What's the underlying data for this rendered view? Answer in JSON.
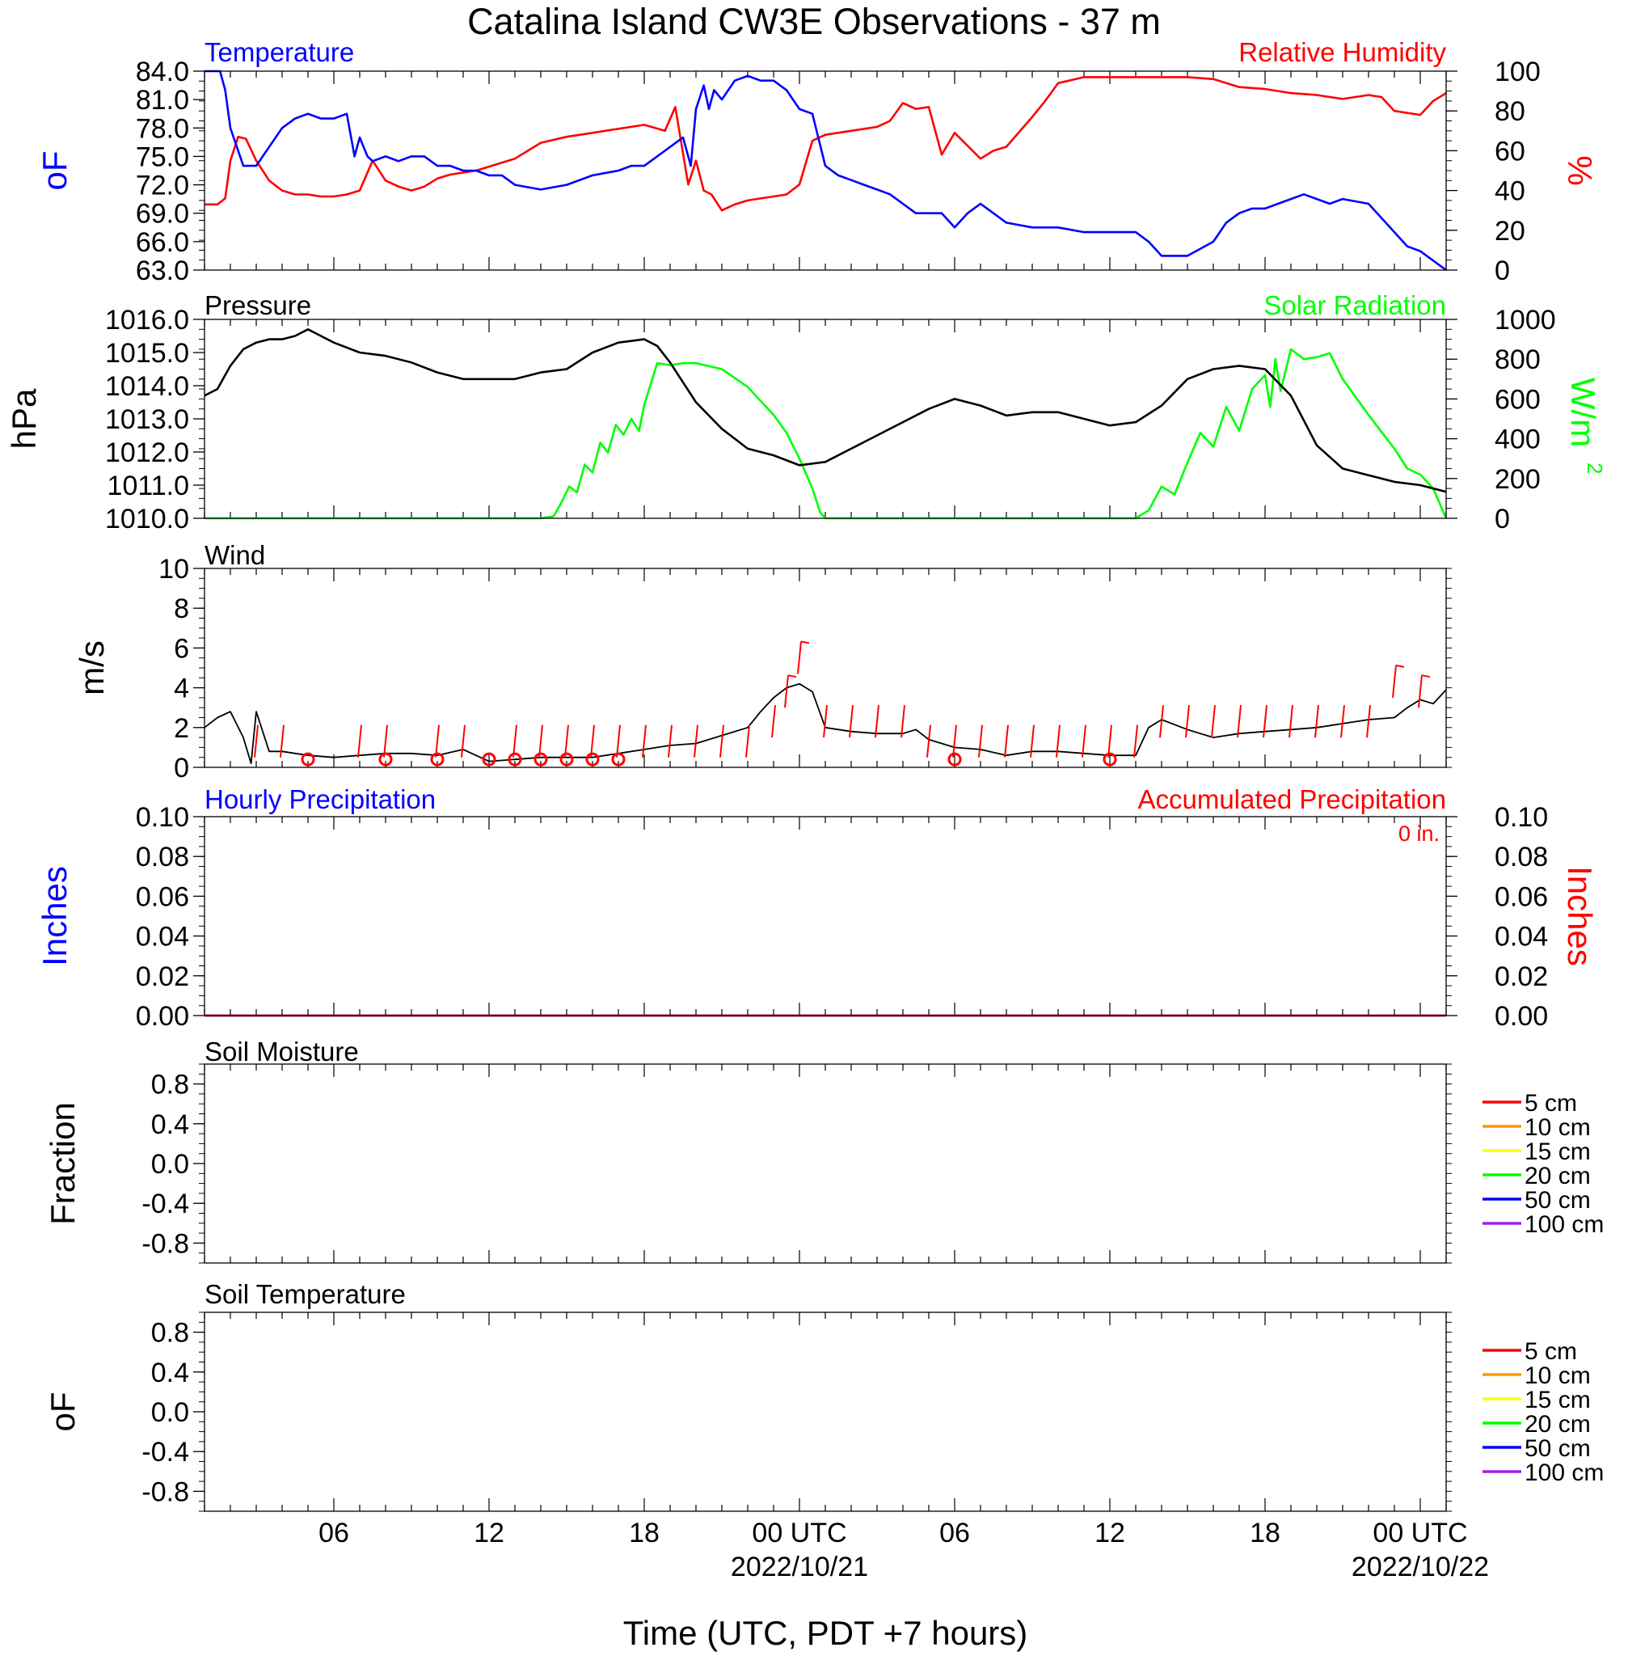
{
  "title": "Catalina Island CW3E Observations - 37 m",
  "x_axis": {
    "title": "Time (UTC, PDT +7 hours)",
    "tick_labels": [
      "06",
      "12",
      "18",
      "00 UTC",
      "06",
      "12",
      "18",
      "00 UTC"
    ],
    "date_labels": [
      "2022/10/21",
      "2022/10/22"
    ]
  },
  "colors": {
    "temperature": "#0000ff",
    "humidity": "#ff0000",
    "pressure": "#000000",
    "solar": "#00ff00",
    "wind": "#000000",
    "barb": "#ff0000",
    "hourly_precip": "#0000ff",
    "accum_precip": "#ff0000"
  },
  "panels": {
    "temp_rh": {
      "left_label": "Temperature",
      "right_label": "Relative Humidity",
      "left_unit": "oF",
      "right_unit": "%",
      "left_ticks": [
        "84.0",
        "81.0",
        "78.0",
        "75.0",
        "72.0",
        "69.0",
        "66.0",
        "63.0"
      ],
      "right_ticks": [
        "100",
        "80",
        "60",
        "40",
        "20",
        "0"
      ]
    },
    "pressure_solar": {
      "left_label": "Pressure",
      "right_label": "Solar Radiation",
      "left_unit": "hPa",
      "right_unit": "W/m",
      "right_unit_sup": "2",
      "left_ticks": [
        "1016.0",
        "1015.0",
        "1014.0",
        "1013.0",
        "1012.0",
        "1011.0",
        "1010.0"
      ],
      "right_ticks": [
        "1000",
        "800",
        "600",
        "400",
        "200",
        "0"
      ]
    },
    "wind": {
      "left_label": "Wind",
      "left_unit": "m/s",
      "left_ticks": [
        "10",
        "8",
        "6",
        "4",
        "2",
        "0"
      ]
    },
    "precip": {
      "left_label": "Hourly Precipitation",
      "right_label": "Accumulated Precipitation",
      "accum_total": "0 in.",
      "left_unit": "Inches",
      "right_unit": "Inches",
      "left_ticks": [
        "0.10",
        "0.08",
        "0.06",
        "0.04",
        "0.02",
        "0.00"
      ],
      "right_ticks": [
        "0.10",
        "0.08",
        "0.06",
        "0.04",
        "0.02",
        "0.00"
      ]
    },
    "soil_moisture": {
      "left_label": "Soil Moisture",
      "left_unit": "Fraction",
      "left_ticks": [
        "0.8",
        "0.4",
        "0.0",
        "-0.4",
        "-0.8"
      ],
      "legend": [
        {
          "label": "5 cm",
          "color": "#ff0000"
        },
        {
          "label": "10 cm",
          "color": "#ff9900"
        },
        {
          "label": "15 cm",
          "color": "#ffff00"
        },
        {
          "label": "20 cm",
          "color": "#00ff00"
        },
        {
          "label": "50 cm",
          "color": "#0000ff"
        },
        {
          "label": "100 cm",
          "color": "#a020f0"
        }
      ]
    },
    "soil_temperature": {
      "left_label": "Soil Temperature",
      "left_unit": "oF",
      "left_ticks": [
        "0.8",
        "0.4",
        "0.0",
        "-0.4",
        "-0.8"
      ],
      "legend": [
        {
          "label": "5 cm",
          "color": "#ff0000"
        },
        {
          "label": "10 cm",
          "color": "#ff9900"
        },
        {
          "label": "15 cm",
          "color": "#ffff00"
        },
        {
          "label": "20 cm",
          "color": "#00ff00"
        },
        {
          "label": "50 cm",
          "color": "#0000ff"
        },
        {
          "label": "100 cm",
          "color": "#a020f0"
        }
      ]
    }
  },
  "chart_data": [
    {
      "type": "line",
      "panel": "temp_rh",
      "x_unit": "hours since 2022-10-20 00 UTC",
      "xlim": [
        1,
        49
      ],
      "series": [
        {
          "name": "Temperature",
          "axis": "left",
          "unit": "F",
          "ylim": [
            63,
            84
          ],
          "x": [
            1,
            1.6,
            1.8,
            2,
            2.5,
            3,
            3.5,
            4,
            4.5,
            5,
            5.5,
            6,
            6.5,
            6.8,
            7,
            7.3,
            7.5,
            8,
            8.5,
            9,
            9.5,
            10,
            10.5,
            11,
            11.5,
            12,
            12.5,
            13,
            14,
            15,
            16,
            17,
            17.5,
            18,
            18.5,
            19,
            19.5,
            19.8,
            20,
            20.3,
            20.5,
            20.7,
            21,
            21.5,
            22,
            22.5,
            23,
            23.5,
            24,
            24.5,
            25,
            25.5,
            26,
            26.5,
            27,
            27.5,
            28,
            28.5,
            29,
            29.5,
            30,
            30.5,
            31,
            31.5,
            32,
            33,
            34,
            35,
            36,
            37,
            37.5,
            38,
            39,
            40,
            40.5,
            41,
            41.5,
            42,
            42.5,
            43,
            43.5,
            44,
            44.5,
            45,
            46,
            47,
            47.5,
            48,
            48.5,
            49
          ],
          "values": [
            84,
            84,
            82,
            78,
            74,
            74,
            76,
            78,
            79,
            79.5,
            79,
            79,
            79.5,
            75,
            77,
            75,
            74.5,
            75,
            74.5,
            75,
            75,
            74,
            74,
            73.5,
            73.5,
            73,
            73,
            72,
            71.5,
            72,
            73,
            73.5,
            74,
            74,
            75,
            76,
            77,
            74,
            80,
            82.5,
            80,
            82,
            81,
            83,
            83.5,
            83,
            83,
            82,
            80,
            79.5,
            74,
            73,
            72.5,
            72,
            71.5,
            71,
            70,
            69,
            69,
            69,
            67.5,
            69,
            70,
            69,
            68,
            67.5,
            67.5,
            67,
            67,
            67,
            66,
            64.5,
            64.5,
            66,
            68,
            69,
            69.5,
            69.5,
            70,
            70.5,
            71,
            70.5,
            70,
            70.5,
            70,
            67,
            65.5,
            65,
            64,
            63
          ]
        },
        {
          "name": "Relative Humidity",
          "axis": "right",
          "unit": "%",
          "ylim": [
            0,
            100
          ],
          "x": [
            1,
            1.5,
            1.8,
            2,
            2.3,
            2.6,
            3,
            3.5,
            4,
            4.5,
            5,
            5.5,
            6,
            6.5,
            7,
            7.5,
            8,
            8.5,
            9,
            9.5,
            10,
            10.5,
            11,
            11.5,
            12,
            13,
            14,
            15,
            16,
            17,
            18,
            18.8,
            19.2,
            19.7,
            20,
            20.3,
            20.6,
            20.9,
            21,
            21.5,
            22,
            22.5,
            23,
            23.5,
            24,
            24.5,
            25,
            26,
            27,
            27.5,
            28,
            28.5,
            29,
            29.5,
            30,
            31,
            31.5,
            32,
            33,
            33.5,
            34,
            35,
            36,
            37,
            38,
            39,
            40,
            41,
            42,
            43,
            44,
            45,
            46,
            46.5,
            47,
            48,
            48.5,
            49
          ],
          "values": [
            33,
            33,
            36,
            55,
            67,
            66,
            55,
            45,
            40,
            38,
            38,
            37,
            37,
            38,
            40,
            55,
            45,
            42,
            40,
            42,
            46,
            48,
            49,
            50,
            52,
            56,
            64,
            67,
            69,
            71,
            73,
            70,
            82,
            43,
            55,
            40,
            38,
            32,
            30,
            33,
            35,
            36,
            37,
            38,
            43,
            65,
            68,
            70,
            72,
            75,
            84,
            81,
            82,
            58,
            69,
            56,
            60,
            62,
            77,
            85,
            94,
            97,
            97,
            97,
            97,
            97,
            96,
            92,
            91,
            89,
            88,
            86,
            88,
            87,
            80,
            78,
            85,
            89
          ]
        }
      ]
    },
    {
      "type": "line",
      "panel": "pressure_solar",
      "x_unit": "hours since 2022-10-20 00 UTC",
      "xlim": [
        1,
        49
      ],
      "series": [
        {
          "name": "Pressure",
          "axis": "left",
          "unit": "hPa",
          "ylim": [
            1010,
            1016
          ],
          "x": [
            1,
            1.5,
            2,
            2.5,
            3,
            3.5,
            4,
            4.5,
            5,
            5.5,
            6,
            7,
            8,
            9,
            10,
            11,
            12,
            13,
            14,
            15,
            16,
            17,
            18,
            18.5,
            19,
            20,
            21,
            22,
            23,
            24,
            25,
            26,
            27,
            28,
            29,
            30,
            30.5,
            31,
            32,
            33,
            34,
            35,
            36,
            37,
            38,
            39,
            40,
            41,
            42,
            43,
            44,
            45,
            46,
            47,
            48,
            48.5,
            49
          ],
          "values": [
            1013.7,
            1013.9,
            1014.6,
            1015.1,
            1015.3,
            1015.4,
            1015.4,
            1015.5,
            1015.7,
            1015.5,
            1015.3,
            1015.0,
            1014.9,
            1014.7,
            1014.4,
            1014.2,
            1014.2,
            1014.2,
            1014.4,
            1014.5,
            1015.0,
            1015.3,
            1015.4,
            1015.2,
            1014.7,
            1013.5,
            1012.7,
            1012.1,
            1011.9,
            1011.6,
            1011.7,
            1012.1,
            1012.5,
            1012.9,
            1013.3,
            1013.6,
            1013.5,
            1013.4,
            1013.1,
            1013.2,
            1013.2,
            1013.0,
            1012.8,
            1012.9,
            1013.4,
            1014.2,
            1014.5,
            1014.6,
            1014.5,
            1013.7,
            1012.2,
            1011.5,
            1011.3,
            1011.1,
            1011.0,
            1010.9,
            1010.8
          ]
        },
        {
          "name": "Solar Radiation",
          "axis": "right",
          "unit": "W/m2",
          "ylim": [
            0,
            1000
          ],
          "x": [
            1,
            14,
            14.5,
            14.8,
            15.1,
            15.4,
            15.7,
            16,
            16.3,
            16.6,
            16.9,
            17.2,
            17.5,
            17.8,
            18,
            18.5,
            19,
            19.5,
            20,
            21,
            22,
            23,
            23.5,
            24,
            24.5,
            24.8,
            25,
            37,
            37.5,
            38,
            38.5,
            39,
            39.5,
            40,
            40.5,
            41,
            41.5,
            42,
            42.2,
            42.4,
            42.6,
            43,
            43.5,
            44,
            44.5,
            45,
            46,
            47,
            47.5,
            48,
            48.5,
            49
          ],
          "values": [
            0,
            0,
            10,
            80,
            160,
            130,
            270,
            230,
            380,
            330,
            470,
            420,
            500,
            440,
            570,
            780,
            770,
            780,
            780,
            750,
            660,
            520,
            430,
            300,
            150,
            30,
            0,
            0,
            40,
            160,
            120,
            280,
            430,
            360,
            560,
            440,
            650,
            720,
            560,
            800,
            640,
            850,
            800,
            810,
            830,
            700,
            520,
            350,
            250,
            220,
            150,
            0
          ]
        }
      ]
    },
    {
      "type": "line",
      "panel": "wind",
      "x_unit": "hours since 2022-10-20 00 UTC",
      "xlim": [
        1,
        49
      ],
      "series": [
        {
          "name": "Wind",
          "unit": "m/s",
          "ylim": [
            0,
            10
          ],
          "x": [
            1,
            1.5,
            2,
            2.5,
            2.8,
            3,
            3.5,
            4,
            5,
            6,
            7,
            8,
            9,
            10,
            11,
            12,
            13,
            14,
            15,
            16,
            17,
            18,
            19,
            20,
            21,
            22,
            22.5,
            23,
            23.5,
            24,
            24.5,
            25,
            26,
            27,
            28,
            28.5,
            29,
            30,
            31,
            32,
            33,
            34,
            35,
            36,
            37,
            37.5,
            38,
            39,
            40,
            41,
            42,
            43,
            44,
            45,
            46,
            47,
            47.5,
            48,
            48.5,
            49
          ],
          "values": [
            2.0,
            2.5,
            2.8,
            1.5,
            0.2,
            2.8,
            0.8,
            0.8,
            0.6,
            0.5,
            0.6,
            0.7,
            0.7,
            0.6,
            0.9,
            0.3,
            0.4,
            0.5,
            0.5,
            0.5,
            0.7,
            0.9,
            1.1,
            1.2,
            1.6,
            2.0,
            2.8,
            3.5,
            4.0,
            4.2,
            3.8,
            2.0,
            1.8,
            1.7,
            1.7,
            1.9,
            1.4,
            1.0,
            0.9,
            0.6,
            0.8,
            0.8,
            0.7,
            0.6,
            0.6,
            2.0,
            2.4,
            1.9,
            1.5,
            1.7,
            1.8,
            1.9,
            2.0,
            2.2,
            2.4,
            2.5,
            3.0,
            3.4,
            3.2,
            3.9
          ]
        },
        {
          "name": "Barbs",
          "type": "barb",
          "unit": "m/s",
          "x": [
            3,
            4,
            7,
            8,
            10,
            11,
            13,
            14,
            15,
            16,
            17,
            18,
            19,
            20,
            21,
            22,
            23,
            23.5,
            24,
            25,
            26,
            27,
            28,
            29,
            30,
            31,
            32,
            33,
            34,
            35,
            36,
            37,
            38,
            39,
            40,
            41,
            42,
            43,
            44,
            45,
            46,
            47,
            48
          ],
          "values": [
            2,
            2,
            2,
            2,
            1,
            1,
            1,
            1,
            1,
            1,
            1,
            1,
            2,
            2,
            2,
            2,
            3,
            4.5,
            6.2,
            3,
            3,
            3,
            3,
            2,
            2,
            2,
            2,
            2,
            2,
            2,
            2,
            2,
            3,
            3,
            3,
            3,
            3,
            3,
            3,
            3,
            3,
            5,
            4.5
          ]
        },
        {
          "name": "Calm",
          "type": "circle",
          "x": [
            5,
            8,
            10,
            12,
            13,
            14,
            15,
            16,
            17,
            30,
            36
          ]
        }
      ]
    },
    {
      "type": "line",
      "panel": "precip",
      "xlim": [
        1,
        49
      ],
      "series": [
        {
          "name": "Hourly Precipitation",
          "unit": "in",
          "ylim": [
            0,
            0.1
          ],
          "x": [
            1,
            49
          ],
          "values": [
            0,
            0
          ]
        },
        {
          "name": "Accumulated Precipitation",
          "unit": "in",
          "ylim": [
            0,
            0.1
          ],
          "x": [
            1,
            49
          ],
          "values": [
            0,
            0
          ]
        }
      ]
    },
    {
      "type": "line",
      "panel": "soil_moisture",
      "ylim": [
        -1,
        1
      ],
      "series": []
    },
    {
      "type": "line",
      "panel": "soil_temperature",
      "ylim": [
        -1,
        1
      ],
      "series": []
    }
  ]
}
